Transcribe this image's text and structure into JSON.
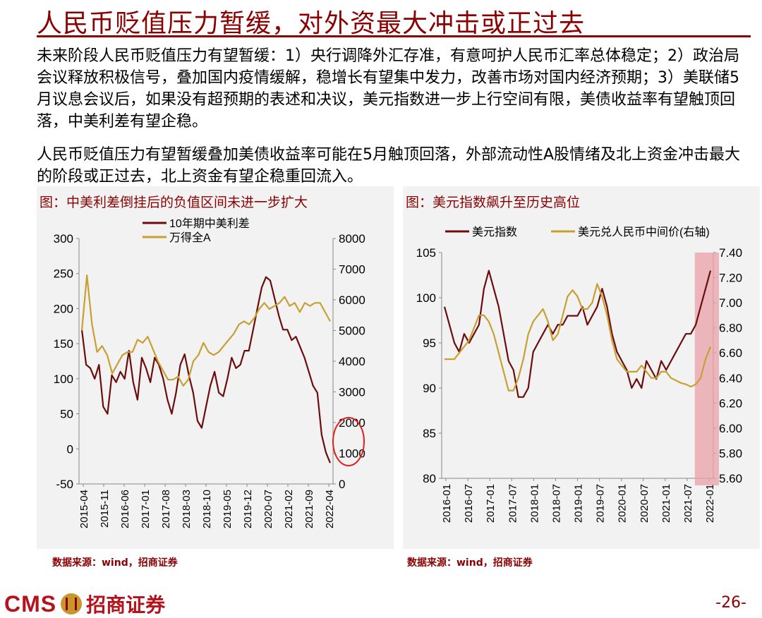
{
  "page": {
    "title": "人民币贬值压力暂缓，对外资最大冲击或正过去",
    "paragraph1": "未来阶段人民币贬值压力有望暂缓：1）央行调降外汇存准，有意呵护人民币汇率总体稳定；2）政治局会议释放积极信号，叠加国内疫情缓解，稳增长有望集中发力，改善市场对国内经济预期；3）美联储5月议息会议后，如果没有超预期的表述和决议，美元指数进一步上行空间有限，美债收益率有望触顶回落，中美利差有望企稳。",
    "paragraph2": "人民币贬值压力有望暂缓叠加美债收益率可能在5月触顶回落，外部流动性A股情绪及北上资金冲击最大的阶段或正过去，北上资金有望企稳重回流入。",
    "source_left": "数据来源：wind，招商证券",
    "source_right": "数据来源：wind，招商证券",
    "logo_text": "CMS",
    "logo_cn": "招商证券",
    "page_number": "-26-"
  },
  "colors": {
    "accent": "#8b0000",
    "series_dark": "#6b0d0d",
    "series_gold": "#c8a032",
    "highlight": "#e8a0a8",
    "circle": "#e02020"
  },
  "chart_data": [
    {
      "type": "line",
      "title": "图：中美利差倒挂后的负值区间未进一步扩大",
      "x_ticks": [
        "2015-04",
        "2015-11",
        "2016-06",
        "2017-01",
        "2017-08",
        "2018-03",
        "2018-10",
        "2019-05",
        "2019-12",
        "2020-07",
        "2021-02",
        "2021-09",
        "2022-04"
      ],
      "y_left_ticks": [
        "300",
        "250",
        "200",
        "150",
        "100",
        "50",
        "0",
        "-50"
      ],
      "y_left_range": [
        -50,
        300
      ],
      "y_right_ticks": [
        "8000",
        "7000",
        "6000",
        "5000",
        "4000",
        "3000",
        "2000",
        "1000",
        "0"
      ],
      "y_right_range": [
        0,
        8000
      ],
      "legend": "top-center",
      "annotation": "circle near 2022-04 end",
      "series": [
        {
          "name": "10年期中美利差",
          "axis": "left",
          "color": "#6b0d0d",
          "values": [
            170,
            120,
            115,
            100,
            120,
            60,
            50,
            105,
            95,
            110,
            100,
            140,
            95,
            70,
            130,
            115,
            95,
            130,
            120,
            100,
            70,
            50,
            80,
            120,
            135,
            105,
            80,
            40,
            30,
            60,
            90,
            110,
            80,
            75,
            100,
            130,
            115,
            120,
            140,
            140,
            170,
            200,
            230,
            245,
            240,
            215,
            190,
            170,
            170,
            155,
            160,
            145,
            130,
            110,
            90,
            80,
            20,
            -5,
            -20
          ]
        },
        {
          "name": "万得全A",
          "axis": "right",
          "color": "#c8a032",
          "values": [
            5000,
            6800,
            5200,
            4300,
            4500,
            4200,
            3600,
            3900,
            4200,
            4300,
            4300,
            4700,
            4600,
            4800,
            4400,
            4000,
            3700,
            3400,
            3400,
            3500,
            3200,
            3400,
            4000,
            4200,
            4600,
            4300,
            4200,
            4300,
            4500,
            4700,
            4900,
            5200,
            5300,
            5200,
            5400,
            5700,
            5900,
            5700,
            5800,
            5900,
            6100,
            5800,
            5900,
            5600,
            5900,
            5800,
            5900,
            5900,
            5600,
            5300
          ]
        }
      ]
    },
    {
      "type": "line",
      "title": "图：美元指数飙升至历史高位",
      "x_ticks": [
        "2016-01",
        "2016-07",
        "2017-01",
        "2017-07",
        "2018-01",
        "2018-07",
        "2019-01",
        "2019-07",
        "2020-01",
        "2020-07",
        "2021-01",
        "2021-07",
        "2022-01"
      ],
      "y_left_ticks": [
        "105",
        "100",
        "95",
        "90",
        "85",
        "80"
      ],
      "y_left_range": [
        80,
        105
      ],
      "y_right_ticks": [
        "7.40",
        "7.20",
        "7.00",
        "6.80",
        "6.60",
        "6.40",
        "6.20",
        "6.00",
        "5.80",
        "5.60"
      ],
      "y_right_range": [
        5.6,
        7.4
      ],
      "legend": "top",
      "highlight": "2022-03 to 2022-05",
      "series": [
        {
          "name": "美元指数",
          "axis": "left",
          "color": "#6b0d0d",
          "values": [
            99,
            97,
            95,
            94,
            96,
            95,
            96,
            97,
            101,
            103,
            101,
            99,
            96,
            93,
            92,
            89,
            89,
            90,
            94,
            95,
            96,
            97,
            96,
            97,
            97,
            98,
            98,
            98,
            99,
            97,
            98,
            99,
            101,
            99,
            96,
            94,
            93,
            92,
            90,
            91,
            90,
            93,
            92,
            91,
            93,
            92,
            93,
            94,
            95,
            96,
            96,
            97,
            99,
            101,
            103
          ]
        },
        {
          "name": "美元兑人民币中间价(右轴)",
          "axis": "right",
          "color": "#c8a032",
          "values": [
            6.55,
            6.55,
            6.55,
            6.6,
            6.65,
            6.7,
            6.8,
            6.9,
            6.9,
            6.85,
            6.75,
            6.6,
            6.45,
            6.3,
            6.3,
            6.4,
            6.55,
            6.75,
            6.85,
            6.9,
            6.95,
            6.85,
            6.7,
            6.75,
            6.9,
            7.05,
            7.1,
            7.05,
            6.95,
            6.95,
            7.0,
            7.15,
            7.05,
            6.9,
            6.7,
            6.55,
            6.5,
            6.45,
            6.45,
            6.45,
            6.5,
            6.45,
            6.4,
            6.4,
            6.45,
            6.45,
            6.4,
            6.38,
            6.36,
            6.35,
            6.33,
            6.35,
            6.4,
            6.55,
            6.65
          ]
        }
      ]
    }
  ]
}
